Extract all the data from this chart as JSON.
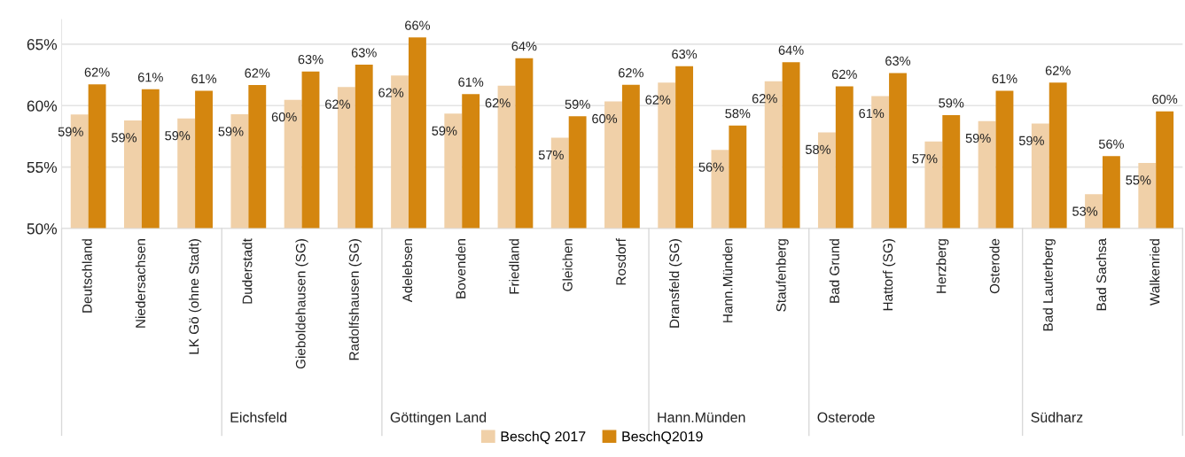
{
  "chart_data": {
    "type": "bar",
    "categories": [
      "Deutschland",
      "Niedersachsen",
      "LK Gö (ohne Stadt)",
      "Duderstadt",
      "Gieboldehausen (SG)",
      "Radolfshausen (SG)",
      "Adelebsen",
      "Bovenden",
      "Friedland",
      "Gleichen",
      "Rosdorf",
      "Dransfeld (SG)",
      "Hann.Münden",
      "Staufenberg",
      "Bad Grund",
      "Hattorf (SG)",
      "Herzberg",
      "Osterode",
      "Bad Lauterberg",
      "Bad Sachsa",
      "Walkenried"
    ],
    "series": [
      {
        "name": "BeschQ 2017",
        "color": "#f0d0a8",
        "values": [
          59.28,
          58.8,
          58.96,
          59.3,
          60.48,
          61.52,
          62.46,
          59.35,
          61.62,
          57.39,
          60.34,
          61.88,
          56.4,
          61.98,
          57.83,
          60.77,
          57.08,
          58.75,
          58.55,
          52.8,
          55.34
        ],
        "value_labels": [
          "59%",
          "59%",
          "59%",
          "59%",
          "60%",
          "62%",
          "62%",
          "59%",
          "62%",
          "57%",
          "60%",
          "62%",
          "56%",
          "62%",
          "58%",
          "61%",
          "57%",
          "59%",
          "59%",
          "53%",
          "55%"
        ]
      },
      {
        "name": "BeschQ2019",
        "color": "#d4860f",
        "values": [
          61.74,
          61.33,
          61.21,
          61.67,
          62.78,
          63.33,
          65.55,
          60.94,
          63.86,
          59.13,
          61.69,
          63.21,
          58.38,
          63.53,
          61.57,
          62.66,
          59.23,
          61.21,
          61.88,
          55.89,
          59.54
        ],
        "value_labels": [
          "62%",
          "61%",
          "61%",
          "62%",
          "63%",
          "63%",
          "66%",
          "61%",
          "64%",
          "59%",
          "62%",
          "63%",
          "58%",
          "64%",
          "62%",
          "63%",
          "59%",
          "61%",
          "62%",
          "56%",
          "60%"
        ]
      }
    ],
    "ylim": [
      50,
      67
    ],
    "yticks": [
      {
        "value": 50,
        "label": "50%"
      },
      {
        "value": 55,
        "label": "55%"
      },
      {
        "value": 60,
        "label": "60%"
      },
      {
        "value": 65,
        "label": "65%"
      }
    ],
    "annotations": [
      {
        "text": "Eichsfeld",
        "x": "Duderstadt"
      },
      {
        "text": "Göttingen Land",
        "x": "Adelebsen"
      },
      {
        "text": "Hann.Münden",
        "x": "Dransfeld (SG)"
      },
      {
        "text": "Osterode",
        "x": "Bad Grund"
      },
      {
        "text": "Südharz",
        "x": "Bad Lauterberg"
      }
    ],
    "grid": "y",
    "legend": "bottom"
  }
}
